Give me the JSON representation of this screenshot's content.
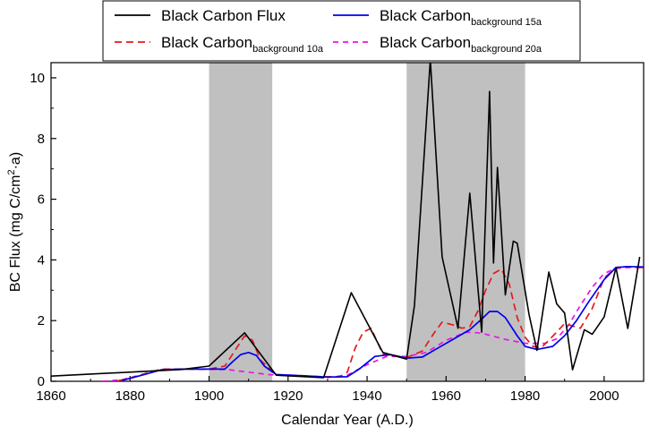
{
  "chart_data": {
    "type": "line",
    "xlabel": "Calendar Year (A.D.)",
    "ylabel": "BC Flux (mg C/cm",
    "ylabel_sup": "2",
    "ylabel_tail": "·a)",
    "xlim": [
      1860,
      2010
    ],
    "ylim": [
      0,
      10.5
    ],
    "xticks": [
      1860,
      1880,
      1900,
      1920,
      1940,
      1960,
      1980,
      2000
    ],
    "yticks": [
      0,
      2,
      4,
      6,
      8,
      10
    ],
    "grid": false,
    "legend_position": "top",
    "shaded_periods": [
      [
        1900,
        1916
      ],
      [
        1950,
        1980
      ]
    ],
    "series": [
      {
        "name": "Black Carbon Flux",
        "name_base": "Black Carbon Flux",
        "name_sub": "",
        "color": "#000000",
        "dash": "",
        "x": [
          1860,
          1893,
          1900,
          1909,
          1917,
          1929,
          1936,
          1944,
          1950,
          1952,
          1956,
          1959,
          1963,
          1966,
          1969,
          1971,
          1972,
          1973,
          1975,
          1977,
          1978,
          1981,
          1983,
          1986,
          1988,
          1990,
          1992,
          1995,
          1997,
          2000,
          2003,
          2006,
          2009
        ],
        "y": [
          0.17,
          0.39,
          0.5,
          1.6,
          0.2,
          0.12,
          2.92,
          0.95,
          0.73,
          2.5,
          10.6,
          4.1,
          1.75,
          6.2,
          1.62,
          9.55,
          3.9,
          7.05,
          2.85,
          4.62,
          4.55,
          2.2,
          1.02,
          3.6,
          2.55,
          2.25,
          0.38,
          1.7,
          1.55,
          2.12,
          3.75,
          1.74,
          4.1
        ]
      },
      {
        "name": "Black Carbon background 10a",
        "name_base": "Black Carbon",
        "name_sub": "background 10a",
        "color": "#e31a1c",
        "dash": "8,5",
        "x": [
          1877,
          1880,
          1885,
          1888,
          1893,
          1900,
          1904,
          1907,
          1909,
          1911,
          1913,
          1917,
          1924,
          1929,
          1933,
          1935,
          1937,
          1939,
          1941,
          1944,
          1950,
          1954,
          1957,
          1959,
          1962,
          1964,
          1966,
          1968,
          1970,
          1972,
          1974,
          1976,
          1978,
          1980,
          1982,
          1984,
          1986,
          1990,
          1994,
          1997,
          2000,
          2003,
          2006,
          2010
        ],
        "y": [
          0.02,
          0.1,
          0.3,
          0.4,
          0.4,
          0.4,
          0.5,
          1.1,
          1.5,
          1.35,
          0.7,
          0.22,
          0.18,
          0.15,
          0.15,
          0.3,
          1.1,
          1.62,
          1.75,
          0.9,
          0.78,
          1.0,
          1.6,
          1.95,
          1.85,
          1.75,
          1.8,
          2.3,
          3.0,
          3.55,
          3.7,
          3.2,
          2.1,
          1.45,
          1.15,
          1.1,
          1.35,
          1.9,
          1.75,
          2.4,
          3.4,
          3.75,
          3.78,
          3.75
        ]
      },
      {
        "name": "Black Carbon background 15a",
        "name_base": "Black Carbon",
        "name_sub": "background 15a",
        "color": "#0000ee",
        "dash": "",
        "x": [
          1878,
          1883,
          1888,
          1893,
          1900,
          1904,
          1906,
          1908,
          1910,
          1912,
          1914,
          1917,
          1924,
          1930,
          1935,
          1938,
          1942,
          1946,
          1950,
          1954,
          1958,
          1962,
          1966,
          1969,
          1971,
          1973,
          1975,
          1978,
          1980,
          1983,
          1987,
          1990,
          1993,
          1996,
          2000,
          2003,
          2006,
          2010
        ],
        "y": [
          0.03,
          0.2,
          0.38,
          0.4,
          0.4,
          0.4,
          0.65,
          0.88,
          0.95,
          0.85,
          0.5,
          0.22,
          0.18,
          0.14,
          0.15,
          0.4,
          0.82,
          0.88,
          0.76,
          0.8,
          1.1,
          1.4,
          1.7,
          2.05,
          2.3,
          2.3,
          2.1,
          1.5,
          1.15,
          1.05,
          1.15,
          1.5,
          2.0,
          2.6,
          3.35,
          3.75,
          3.78,
          3.77
        ]
      },
      {
        "name": "Black Carbon background 20a",
        "name_base": "Black Carbon",
        "name_sub": "background 20a",
        "color": "#ee11ee",
        "dash": "6,5",
        "x": [
          1873,
          1878,
          1883,
          1888,
          1893,
          1900,
          1905,
          1910,
          1915,
          1920,
          1925,
          1930,
          1935,
          1940,
          1945,
          1950,
          1955,
          1960,
          1965,
          1968,
          1970,
          1975,
          1980,
          1985,
          1988,
          1991,
          1994,
          1997,
          2000,
          2003,
          2006,
          2010
        ],
        "y": [
          0.0,
          0.05,
          0.22,
          0.38,
          0.4,
          0.4,
          0.38,
          0.3,
          0.22,
          0.19,
          0.16,
          0.13,
          0.2,
          0.55,
          0.82,
          0.82,
          0.95,
          1.35,
          1.62,
          1.6,
          1.55,
          1.38,
          1.25,
          1.25,
          1.4,
          1.85,
          2.5,
          3.1,
          3.55,
          3.72,
          3.75,
          3.75
        ]
      }
    ]
  }
}
